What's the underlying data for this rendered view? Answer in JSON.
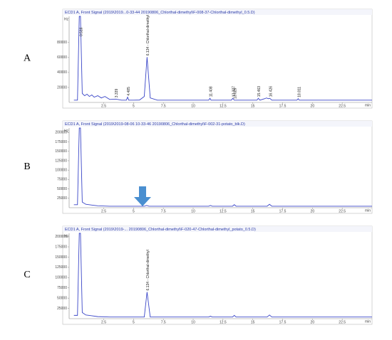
{
  "chart_data": [
    {
      "type": "line",
      "panel_label": "A",
      "title": "ECD1 A, Front Signal (2019\\2019...0-33-44 20190806_Chlorthal-dimethyl\\F-008-37-Chlorthal-dimethyl_0.5.D)",
      "y_unit": "Hz",
      "x_unit": "min",
      "x": [
        0,
        0.3,
        0.45,
        0.55,
        0.7,
        0.9,
        1.1,
        1.3,
        1.5,
        1.7,
        2.0,
        2.3,
        2.6,
        3.0,
        3.5,
        4.0,
        4.4,
        4.5,
        4.6,
        5.0,
        5.5,
        5.9,
        6.134,
        6.4,
        7.0,
        8,
        9,
        10,
        11.3,
        11.408,
        11.5,
        12,
        13.2,
        13.327,
        13.45,
        14,
        15.35,
        15.463,
        15.6,
        16.0,
        16.15,
        16.3,
        16.426,
        16.6,
        17,
        18.7,
        18.811,
        18.9,
        20,
        22,
        25
      ],
      "values": [
        3000,
        3000,
        115000,
        115000,
        12000,
        9000,
        11000,
        8000,
        10000,
        7000,
        9000,
        6000,
        8000,
        4000,
        4500,
        3000,
        3000,
        7000,
        3000,
        3000,
        3200,
        8000,
        60600,
        6000,
        3000,
        3000,
        3000,
        3000,
        3000,
        5500,
        3000,
        3000,
        3000,
        5500,
        3000,
        3000,
        3000,
        5500,
        3000,
        5000,
        6000,
        5000,
        5500,
        3000,
        3000,
        3000,
        5000,
        3000,
        3000,
        3000,
        3000
      ],
      "color": "#3a46c8",
      "xlim": [
        -0.4,
        25
      ],
      "ylim": [
        0,
        115000
      ],
      "xticks": [
        2.5,
        5,
        7.5,
        10,
        12.5,
        15,
        17.5,
        20,
        22.5
      ],
      "yticks": [
        20000,
        40000,
        60000,
        80000
      ],
      "annotations": [
        {
          "text": "0.516",
          "x": 0.55
        },
        {
          "text": "3.339",
          "x": 3.5
        },
        {
          "text": "4.485",
          "x": 4.5
        },
        {
          "text": "6.134 - Chlorthal-dimethyl",
          "x": 6.134
        },
        {
          "text": "11.408",
          "x": 11.408
        },
        {
          "text": "13.327",
          "x": 13.327
        },
        {
          "text": "13.629",
          "x": 13.45
        },
        {
          "text": "15.463",
          "x": 15.463
        },
        {
          "text": "16.426",
          "x": 16.426
        },
        {
          "text": "18.811",
          "x": 18.811
        }
      ]
    },
    {
      "type": "line",
      "panel_label": "B",
      "title": "ECD1 A, Front Signal (2019\\2019-08-06 10-33-46 20190806_Chlorthal-dimethyl\\F-002-31-potato_blk.D)",
      "y_unit": "Hz",
      "x_unit": "min",
      "x": [
        0,
        0.3,
        0.45,
        0.55,
        0.7,
        1.0,
        1.5,
        2,
        3,
        4,
        5,
        5.9,
        6.1,
        6.3,
        7,
        9,
        11,
        11.3,
        11.45,
        11.6,
        13,
        13.3,
        13.45,
        13.6,
        15,
        16.2,
        16.4,
        16.6,
        18,
        20,
        22,
        25
      ],
      "values": [
        8000,
        8000,
        212000,
        212000,
        15000,
        9000,
        7000,
        5000,
        4000,
        4000,
        4000,
        4000,
        6000,
        4000,
        4000,
        4000,
        4000,
        4000,
        6000,
        4000,
        4000,
        4000,
        8000,
        4000,
        4000,
        4000,
        9000,
        4000,
        4000,
        4000,
        4000,
        4000
      ],
      "color": "#3a46c8",
      "xlim": [
        -0.4,
        25
      ],
      "ylim": [
        0,
        212000
      ],
      "xticks": [
        2.5,
        5,
        7.5,
        10,
        12.5,
        15,
        17.5,
        20,
        22.5
      ],
      "yticks": [
        25000,
        50000,
        75000,
        100000,
        125000,
        150000,
        175000,
        200000
      ],
      "annotations": []
    },
    {
      "type": "line",
      "panel_label": "C",
      "title": "ECD1 A, Front Signal (2019\\2019-... 20190806_Chlorthal-dimethyl\\F-020-47-Chlorthal-dimethyl_potato_0.5.D)",
      "y_unit": "Hz",
      "x_unit": "min",
      "x": [
        0,
        0.3,
        0.45,
        0.55,
        0.7,
        1.0,
        1.5,
        2,
        3,
        4,
        5,
        5.9,
        6.134,
        6.4,
        7,
        9,
        11,
        11.3,
        11.45,
        11.6,
        13,
        13.3,
        13.45,
        13.6,
        15,
        16.2,
        16.4,
        16.6,
        18,
        20,
        22,
        25
      ],
      "values": [
        8000,
        8000,
        208000,
        208000,
        15000,
        9000,
        7000,
        5000,
        4000,
        4000,
        4000,
        4000,
        65000,
        4000,
        4000,
        4000,
        4000,
        4000,
        6000,
        4000,
        4000,
        4000,
        8000,
        4000,
        4000,
        4000,
        9000,
        4000,
        4000,
        4000,
        4000,
        4000
      ],
      "color": "#3a46c8",
      "xlim": [
        -0.4,
        25
      ],
      "ylim": [
        0,
        208000
      ],
      "xticks": [
        2.5,
        5,
        7.5,
        10,
        12.5,
        15,
        17.5,
        20,
        22.5
      ],
      "yticks": [
        25000,
        50000,
        75000,
        100000,
        125000,
        150000,
        175000,
        200000
      ],
      "annotations": [
        {
          "text": "6.134 - Chlorthal-dimethyl",
          "x": 6.134
        }
      ]
    }
  ]
}
